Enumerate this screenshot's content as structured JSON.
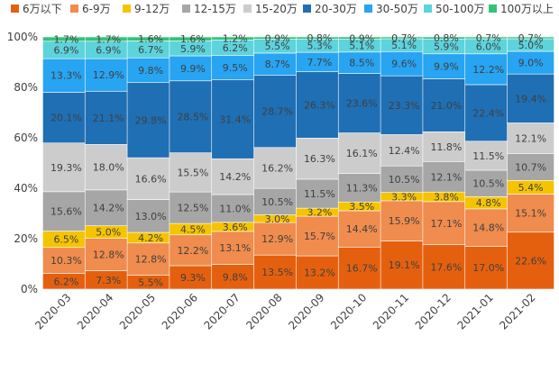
{
  "chart_data": {
    "type": "bar",
    "stacked": true,
    "percent": true,
    "categories": [
      "2020-03",
      "2020-04",
      "2020-05",
      "2020-06",
      "2020-07",
      "2020-08",
      "2020-09",
      "2020-10",
      "2020-11",
      "2020-12",
      "2021-01",
      "2021-02"
    ],
    "ylim": [
      0,
      100
    ],
    "y_ticks": [
      "0%",
      "20%",
      "40%",
      "60%",
      "80%",
      "100%"
    ],
    "legend_position": "top",
    "series": [
      {
        "name": "6万以下",
        "color": "#e5600e",
        "label_color": "#404040",
        "values": [
          6.2,
          7.3,
          5.5,
          9.3,
          9.8,
          13.5,
          13.2,
          16.7,
          19.1,
          17.6,
          17.0,
          22.6
        ]
      },
      {
        "name": "6-9万",
        "color": "#f08c4d",
        "label_color": "#404040",
        "values": [
          10.3,
          12.8,
          12.8,
          12.2,
          13.1,
          12.9,
          15.7,
          14.4,
          15.9,
          17.1,
          14.8,
          15.1
        ]
      },
      {
        "name": "9-12万",
        "color": "#f5c400",
        "label_color": "#404040",
        "values": [
          6.5,
          5.0,
          4.2,
          4.5,
          3.6,
          3.0,
          3.2,
          3.5,
          3.3,
          3.8,
          4.8,
          5.4
        ]
      },
      {
        "name": "12-15万",
        "color": "#a6a6a6",
        "label_color": "#404040",
        "values": [
          15.6,
          14.2,
          13.0,
          12.5,
          11.0,
          10.5,
          11.5,
          11.3,
          10.5,
          12.1,
          10.5,
          10.7
        ]
      },
      {
        "name": "15-20万",
        "color": "#cccccc",
        "label_color": "#404040",
        "values": [
          19.3,
          18.0,
          16.6,
          15.5,
          14.2,
          16.2,
          16.3,
          16.1,
          12.4,
          11.8,
          11.5,
          12.1
        ]
      },
      {
        "name": "20-30万",
        "color": "#1f6fb4",
        "label_color": "#404040",
        "values": [
          20.1,
          21.1,
          29.8,
          28.5,
          31.4,
          28.7,
          26.3,
          23.6,
          23.3,
          21.0,
          22.4,
          19.4
        ]
      },
      {
        "name": "30-50万",
        "color": "#27a4f2",
        "label_color": "#404040",
        "values": [
          13.3,
          12.9,
          9.8,
          9.9,
          9.5,
          8.7,
          7.7,
          8.5,
          9.6,
          9.9,
          12.2,
          9.0
        ]
      },
      {
        "name": "50-100万",
        "color": "#5dd3dc",
        "label_color": "#404040",
        "values": [
          6.9,
          6.9,
          6.7,
          5.9,
          6.2,
          5.5,
          5.3,
          5.1,
          5.1,
          5.9,
          6.0,
          5.0
        ]
      },
      {
        "name": "100万以上",
        "color": "#33c27a",
        "label_color": "#404040",
        "values": [
          1.7,
          1.7,
          1.6,
          1.6,
          1.2,
          0.9,
          0.8,
          0.9,
          0.7,
          0.8,
          0.7,
          0.7
        ]
      }
    ]
  }
}
